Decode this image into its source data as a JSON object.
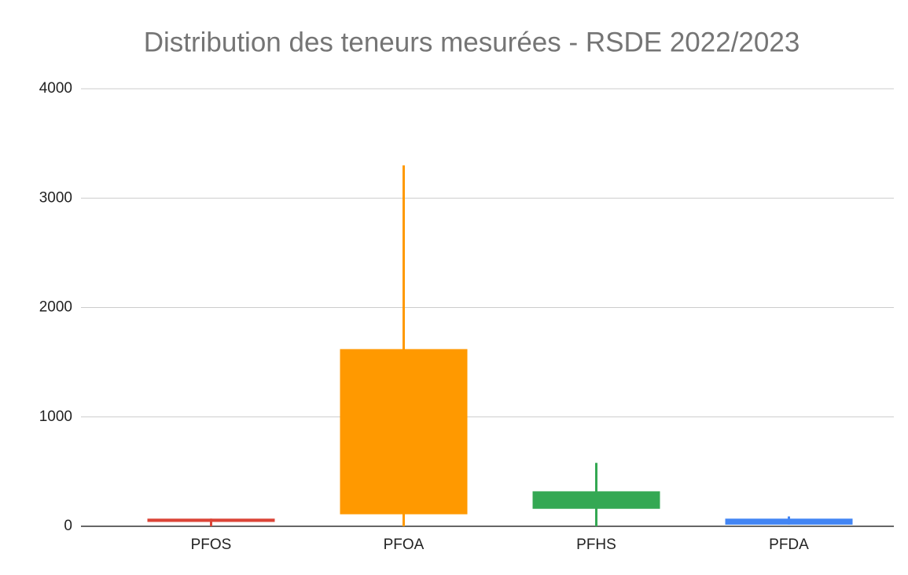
{
  "chart_data": {
    "type": "candlestick",
    "title": "Distribution des teneurs mesurées - RSDE 2022/2023",
    "categories": [
      "PFOS",
      "PFOA",
      "PFHS",
      "PFDA"
    ],
    "low": [
      0,
      0,
      0,
      15
    ],
    "open": [
      40,
      110,
      160,
      15
    ],
    "close": [
      70,
      1620,
      320,
      70
    ],
    "high": [
      70,
      3300,
      580,
      90
    ],
    "colors": [
      "#db4437",
      "#ff9900",
      "#34a853",
      "#4285f4"
    ],
    "ylim": [
      0,
      4000
    ],
    "yticks": [
      0,
      1000,
      2000,
      3000,
      4000
    ],
    "grid": true
  }
}
